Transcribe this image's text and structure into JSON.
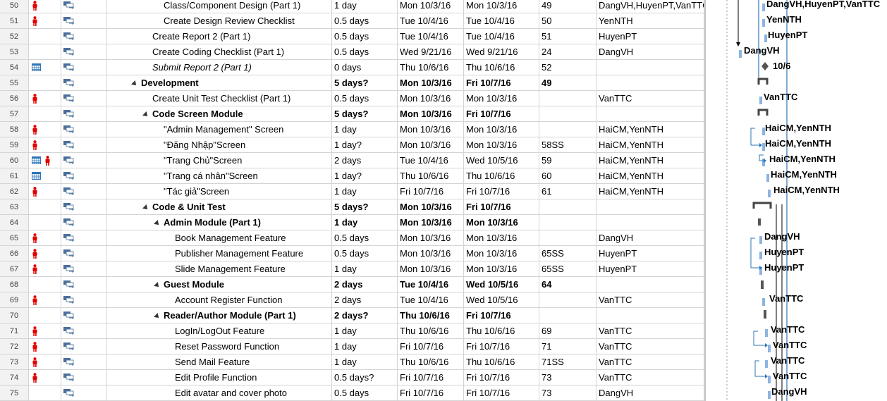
{
  "grid": {
    "rows": [
      {
        "id": "50",
        "ind": [
          "person"
        ],
        "name": "Class/Component Design (Part 1)",
        "level": 3,
        "bold": false,
        "italic": false,
        "summary": false,
        "duration": "1 day",
        "start": "Mon 10/3/16",
        "finish": "Mon 10/3/16",
        "pred": "49",
        "res": "DangVH,HuyenPT,VanTTC"
      },
      {
        "id": "51",
        "ind": [
          "person"
        ],
        "name": "Create Design Review Checklist",
        "level": 3,
        "bold": false,
        "italic": false,
        "summary": false,
        "duration": "0.5 days",
        "start": "Tue 10/4/16",
        "finish": "Tue 10/4/16",
        "pred": "50",
        "res": "YenNTH"
      },
      {
        "id": "52",
        "ind": [],
        "name": "Create Report 2 (Part 1)",
        "level": 2,
        "bold": false,
        "italic": false,
        "summary": false,
        "duration": "0.5 days",
        "start": "Tue 10/4/16",
        "finish": "Tue 10/4/16",
        "pred": "51",
        "res": "HuyenPT"
      },
      {
        "id": "53",
        "ind": [],
        "name": "Create Coding Checklist (Part 1)",
        "level": 2,
        "bold": false,
        "italic": false,
        "summary": false,
        "duration": "0.5 days",
        "start": "Wed 9/21/16",
        "finish": "Wed 9/21/16",
        "pred": "24",
        "res": "DangVH"
      },
      {
        "id": "54",
        "ind": [
          "calendar"
        ],
        "name": "Submit Report 2 (Part 1)",
        "level": 2,
        "bold": false,
        "italic": true,
        "summary": false,
        "duration": "0 days",
        "start": "Thu 10/6/16",
        "finish": "Thu 10/6/16",
        "pred": "52",
        "res": ""
      },
      {
        "id": "55",
        "ind": [],
        "name": "Development",
        "level": 1,
        "bold": true,
        "italic": false,
        "summary": true,
        "duration": "5 days?",
        "start": "Mon 10/3/16",
        "finish": "Fri 10/7/16",
        "pred": "49",
        "res": ""
      },
      {
        "id": "56",
        "ind": [
          "person"
        ],
        "name": "Create Unit Test Checklist (Part 1)",
        "level": 2,
        "bold": false,
        "italic": false,
        "summary": false,
        "duration": "0.5 days",
        "start": "Mon 10/3/16",
        "finish": "Mon 10/3/16",
        "pred": "",
        "res": "VanTTC"
      },
      {
        "id": "57",
        "ind": [],
        "name": "Code Screen Module",
        "level": 2,
        "bold": true,
        "italic": false,
        "summary": true,
        "duration": "5 days?",
        "start": "Mon 10/3/16",
        "finish": "Fri 10/7/16",
        "pred": "",
        "res": ""
      },
      {
        "id": "58",
        "ind": [
          "person"
        ],
        "name": "\"Admin Management\" Screen",
        "level": 3,
        "bold": false,
        "italic": false,
        "summary": false,
        "duration": "1 day",
        "start": "Mon 10/3/16",
        "finish": "Mon 10/3/16",
        "pred": "",
        "res": "HaiCM,YenNTH"
      },
      {
        "id": "59",
        "ind": [
          "person"
        ],
        "name": "\"Đăng Nhập\"Screen",
        "level": 3,
        "bold": false,
        "italic": false,
        "summary": false,
        "duration": "1 day?",
        "start": "Mon 10/3/16",
        "finish": "Mon 10/3/16",
        "pred": "58SS",
        "res": "HaiCM,YenNTH"
      },
      {
        "id": "60",
        "ind": [
          "calendar",
          "person"
        ],
        "name": "\"Trang Chủ\"Screen",
        "level": 3,
        "bold": false,
        "italic": false,
        "summary": false,
        "duration": "2 days",
        "start": "Tue 10/4/16",
        "finish": "Wed 10/5/16",
        "pred": "59",
        "res": "HaiCM,YenNTH"
      },
      {
        "id": "61",
        "ind": [
          "calendar"
        ],
        "name": "\"Trang cá nhân\"Screen",
        "level": 3,
        "bold": false,
        "italic": false,
        "summary": false,
        "duration": "1 day?",
        "start": "Thu 10/6/16",
        "finish": "Thu 10/6/16",
        "pred": "60",
        "res": "HaiCM,YenNTH"
      },
      {
        "id": "62",
        "ind": [
          "person"
        ],
        "name": "\"Tác giả\"Screen",
        "level": 3,
        "bold": false,
        "italic": false,
        "summary": false,
        "duration": "1 day",
        "start": "Fri 10/7/16",
        "finish": "Fri 10/7/16",
        "pred": "61",
        "res": "HaiCM,YenNTH"
      },
      {
        "id": "63",
        "ind": [],
        "name": "Code & Unit Test",
        "level": 2,
        "bold": true,
        "italic": false,
        "summary": true,
        "duration": "5 days?",
        "start": "Mon 10/3/16",
        "finish": "Fri 10/7/16",
        "pred": "",
        "res": ""
      },
      {
        "id": "64",
        "ind": [],
        "name": "Admin Module (Part 1)",
        "level": 3,
        "bold": true,
        "italic": false,
        "summary": true,
        "duration": "1 day",
        "start": "Mon 10/3/16",
        "finish": "Mon 10/3/16",
        "pred": "",
        "res": ""
      },
      {
        "id": "65",
        "ind": [
          "person"
        ],
        "name": "Book Management Feature",
        "level": 4,
        "bold": false,
        "italic": false,
        "summary": false,
        "duration": "0.5 days",
        "start": "Mon 10/3/16",
        "finish": "Mon 10/3/16",
        "pred": "",
        "res": "DangVH"
      },
      {
        "id": "66",
        "ind": [
          "person"
        ],
        "name": "Publisher Management Feature",
        "level": 4,
        "bold": false,
        "italic": false,
        "summary": false,
        "duration": "0.5 days",
        "start": "Mon 10/3/16",
        "finish": "Mon 10/3/16",
        "pred": "65SS",
        "res": "HuyenPT"
      },
      {
        "id": "67",
        "ind": [
          "person"
        ],
        "name": "Slide Management Feature",
        "level": 4,
        "bold": false,
        "italic": false,
        "summary": false,
        "duration": "1 day",
        "start": "Mon 10/3/16",
        "finish": "Mon 10/3/16",
        "pred": "65SS",
        "res": "HuyenPT"
      },
      {
        "id": "68",
        "ind": [],
        "name": "Guest Module",
        "level": 3,
        "bold": true,
        "italic": false,
        "summary": true,
        "duration": "2 days",
        "start": "Tue 10/4/16",
        "finish": "Wed 10/5/16",
        "pred": "64",
        "res": ""
      },
      {
        "id": "69",
        "ind": [
          "person"
        ],
        "name": "Account Register Function",
        "level": 4,
        "bold": false,
        "italic": false,
        "summary": false,
        "duration": "2 days",
        "start": "Tue 10/4/16",
        "finish": "Wed 10/5/16",
        "pred": "",
        "res": "VanTTC"
      },
      {
        "id": "70",
        "ind": [],
        "name": "Reader/Author Module (Part 1)",
        "level": 3,
        "bold": true,
        "italic": false,
        "summary": true,
        "duration": "2 days?",
        "start": "Thu 10/6/16",
        "finish": "Fri 10/7/16",
        "pred": "",
        "res": ""
      },
      {
        "id": "71",
        "ind": [
          "person"
        ],
        "name": "LogIn/LogOut Feature",
        "level": 4,
        "bold": false,
        "italic": false,
        "summary": false,
        "duration": "1 day",
        "start": "Thu 10/6/16",
        "finish": "Thu 10/6/16",
        "pred": "69",
        "res": "VanTTC"
      },
      {
        "id": "72",
        "ind": [
          "person"
        ],
        "name": "Reset Password Function",
        "level": 4,
        "bold": false,
        "italic": false,
        "summary": false,
        "duration": "1 day",
        "start": "Fri 10/7/16",
        "finish": "Fri 10/7/16",
        "pred": "71",
        "res": "VanTTC"
      },
      {
        "id": "73",
        "ind": [
          "person"
        ],
        "name": "Send Mail Feature",
        "level": 4,
        "bold": false,
        "italic": false,
        "summary": false,
        "duration": "1 day",
        "start": "Thu 10/6/16",
        "finish": "Thu 10/6/16",
        "pred": "71SS",
        "res": "VanTTC"
      },
      {
        "id": "74",
        "ind": [
          "person"
        ],
        "name": "Edit Profile Function",
        "level": 4,
        "bold": false,
        "italic": false,
        "summary": false,
        "duration": "0.5 days?",
        "start": "Fri 10/7/16",
        "finish": "Fri 10/7/16",
        "pred": "73",
        "res": "VanTTC"
      },
      {
        "id": "75",
        "ind": [],
        "name": "Edit avatar and cover photo",
        "level": 4,
        "bold": false,
        "italic": false,
        "summary": false,
        "duration": "0.5 days",
        "start": "Fri 10/7/16",
        "finish": "Fri 10/7/16",
        "pred": "73",
        "res": "DangVH"
      }
    ]
  },
  "gantt": {
    "labels": [
      {
        "text": "DangVH,HuyenPT,VanTTC"
      },
      {
        "text": "YenNTH"
      },
      {
        "text": "HuyenPT"
      },
      {
        "text": "DangVH"
      },
      {
        "text": "10/6"
      },
      {
        "text": "VanTTC"
      },
      {
        "text": "HaiCM,YenNTH"
      },
      {
        "text": "HaiCM,YenNTH"
      },
      {
        "text": "HaiCM,YenNTH"
      },
      {
        "text": "HaiCM,YenNTH"
      },
      {
        "text": "HaiCM,YenNTH"
      },
      {
        "text": "DangVH"
      },
      {
        "text": "HuyenPT"
      },
      {
        "text": "HuyenPT"
      },
      {
        "text": "VanTTC"
      },
      {
        "text": "VanTTC"
      },
      {
        "text": "VanTTC"
      },
      {
        "text": "VanTTC"
      },
      {
        "text": "VanTTC"
      },
      {
        "text": "DangVH"
      }
    ]
  },
  "colors": {
    "person_icon": "#e00000",
    "calendar_icon": "#2e75b6",
    "mode_icon": "#4a6f9a",
    "bar": "#8db4e2",
    "link": "#2e75b6",
    "summary": "#444444"
  }
}
